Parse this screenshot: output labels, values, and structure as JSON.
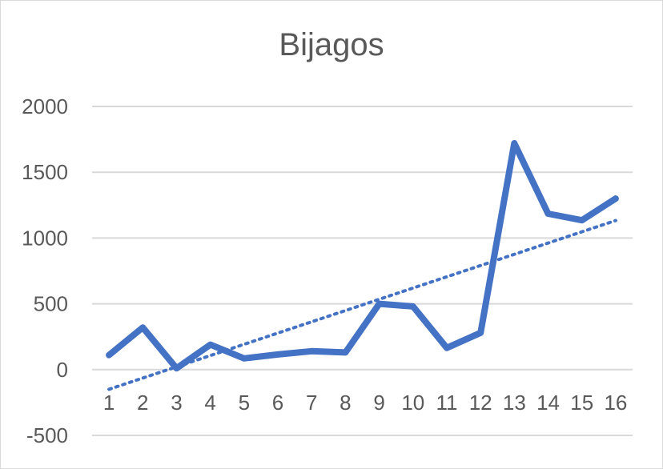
{
  "chart_data": {
    "type": "line",
    "title": "Bijagos",
    "xlabel": "",
    "ylabel": "",
    "categories": [
      "1",
      "2",
      "3",
      "4",
      "5",
      "6",
      "7",
      "8",
      "9",
      "10",
      "11",
      "12",
      "13",
      "14",
      "15",
      "16"
    ],
    "series": [
      {
        "values": [
          110,
          320,
          10,
          190,
          85,
          115,
          140,
          130,
          500,
          480,
          165,
          280,
          1720,
          1185,
          1135,
          1300
        ],
        "color": "#4472C4"
      }
    ],
    "trendline": {
      "type": "linear",
      "style": "dotted",
      "color": "#4472C4"
    },
    "ylim": [
      -500,
      2000
    ],
    "yticks": [
      -500,
      0,
      500,
      1000,
      1500,
      2000
    ],
    "grid": true,
    "legend": "none"
  }
}
